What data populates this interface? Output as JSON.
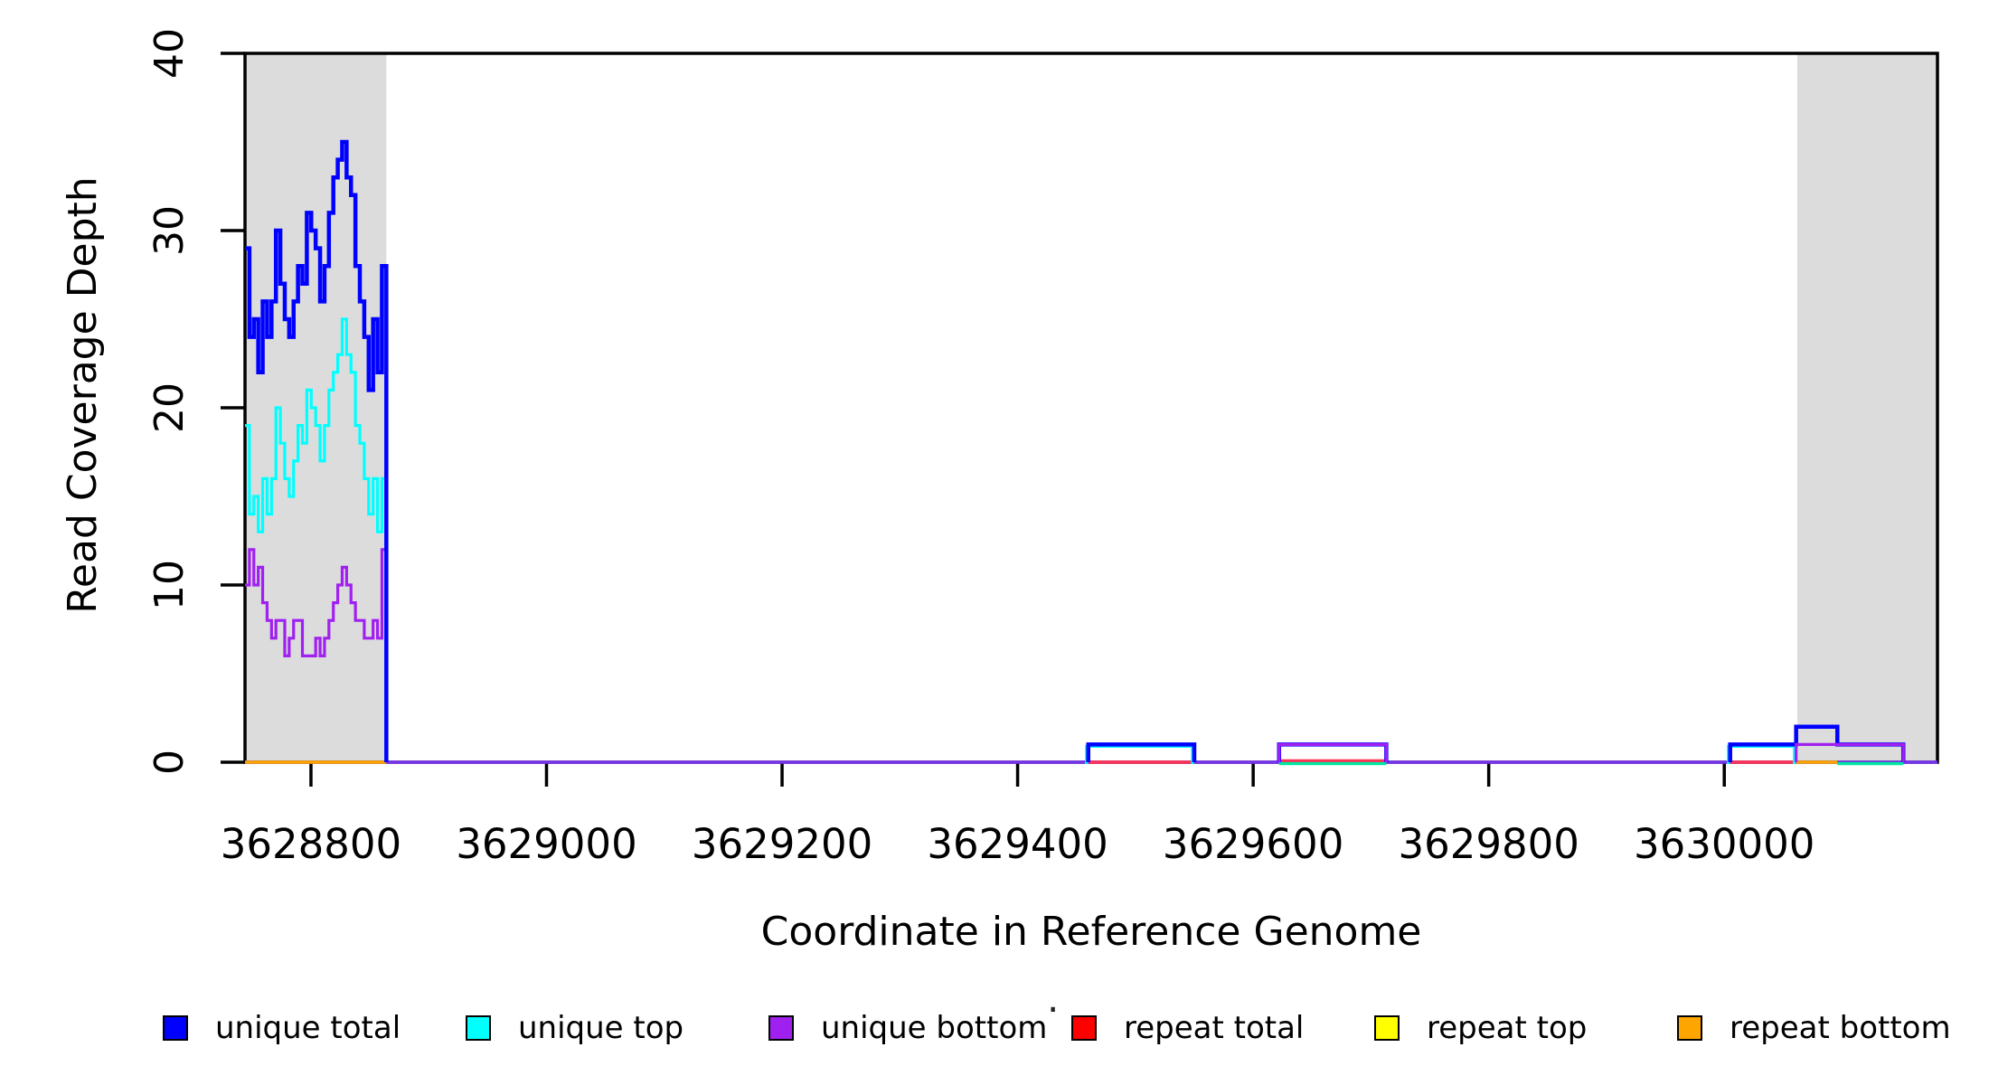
{
  "figure_title": "",
  "x_axis": {
    "title": "Coordinate in Reference Genome",
    "tick_values": [
      3628800,
      3629000,
      3629200,
      3629400,
      3629600,
      3629800,
      3630000
    ]
  },
  "y_axis": {
    "title": "Read Coverage Depth",
    "tick_values": [
      0,
      10,
      20,
      30,
      40
    ]
  },
  "legend": {
    "items": [
      {
        "label": "unique total",
        "color": "#0000FF"
      },
      {
        "label": "unique top",
        "color": "#00FFFF"
      },
      {
        "label": "unique bottom",
        "color": "#A020F0"
      },
      {
        "label": "repeat total",
        "color": "#FF0000"
      },
      {
        "label": "repeat top",
        "color": "#FFFF00"
      },
      {
        "label": "repeat bottom",
        "color": "#FFA500"
      }
    ],
    "artifact_dot": "·"
  },
  "chart_data": {
    "type": "line",
    "subtype": "step-coverage",
    "title": "",
    "xlabel": "Coordinate in Reference Genome",
    "ylabel": "Read Coverage Depth",
    "xlim": [
      3628744,
      3630181
    ],
    "ylim": [
      0,
      40
    ],
    "x_ticks": [
      3628800,
      3629000,
      3629200,
      3629400,
      3629600,
      3629800,
      3630000
    ],
    "y_ticks": [
      0,
      10,
      20,
      30,
      40
    ],
    "grid": false,
    "legend_position": "bottom",
    "shaded_regions": [
      {
        "from": 3628744,
        "to": 3628864,
        "color": "#DCDCDC"
      },
      {
        "from": 3630062,
        "to": 3630181,
        "color": "#DCDCDC"
      }
    ],
    "left_block": {
      "start": 3628744,
      "end": 3628864,
      "series": [
        {
          "name": "unique bottom",
          "color": "#A020F0",
          "line_width": 3.2,
          "values": [
            10,
            12,
            10,
            11,
            9,
            8,
            7,
            8,
            8,
            6,
            7,
            8,
            8,
            6,
            6,
            6,
            7,
            6,
            7,
            8,
            9,
            10,
            11,
            10,
            9,
            8,
            8,
            7,
            7,
            8,
            7,
            12
          ]
        },
        {
          "name": "unique top",
          "color": "#00FFFF",
          "line_width": 3.2,
          "values": [
            19,
            14,
            15,
            13,
            16,
            14,
            16,
            20,
            18,
            16,
            15,
            17,
            19,
            18,
            21,
            20,
            19,
            17,
            19,
            21,
            22,
            23,
            25,
            23,
            22,
            19,
            18,
            16,
            14,
            16,
            13,
            16
          ]
        },
        {
          "name": "unique total",
          "color": "#0000FF",
          "line_width": 4.5,
          "values": [
            29,
            24,
            25,
            22,
            26,
            24,
            26,
            30,
            27,
            25,
            24,
            26,
            28,
            27,
            31,
            30,
            29,
            26,
            28,
            31,
            33,
            34,
            35,
            33,
            32,
            28,
            26,
            24,
            21,
            25,
            22,
            28
          ]
        }
      ]
    },
    "features": [
      {
        "series": "unique top",
        "color": "#00FFFF",
        "line_width": 3.2,
        "shift": true,
        "segments": [
          {
            "from": 3629460,
            "to": 3629550,
            "depth": 1
          },
          {
            "from": 3630005,
            "to": 3630061,
            "depth": 1
          }
        ]
      },
      {
        "series": "unique total",
        "color": "#0000FF",
        "line_width": 4.5,
        "shift": false,
        "segments": [
          {
            "from": 3629460,
            "to": 3629550,
            "depth": 1
          },
          {
            "from": 3629622,
            "to": 3629713,
            "depth": 1
          },
          {
            "from": 3630005,
            "to": 3630061,
            "depth": 1
          },
          {
            "from": 3630061,
            "to": 3630096,
            "depth": 2
          },
          {
            "from": 3630096,
            "to": 3630152,
            "depth": 1
          }
        ]
      },
      {
        "series": "unique bottom",
        "color": "#A020F0",
        "line_width": 3.2,
        "shift": false,
        "segments": [
          {
            "from": 3629622,
            "to": 3629713,
            "depth": 1
          },
          {
            "from": 3630061,
            "to": 3630152,
            "depth": 1
          }
        ]
      }
    ],
    "zero_line_segments": [
      {
        "from": 3628744,
        "to": 3630181,
        "color": "#7733EE",
        "offset": 0,
        "note": "unique-bottom/total overlap baseline"
      },
      {
        "from": 3628744,
        "to": 3628864,
        "color": "#FFA500",
        "offset": 0,
        "note": "repeat bottom visible in left shaded region"
      },
      {
        "from": 3629460,
        "to": 3629550,
        "color": "#FF3355",
        "offset": 0,
        "note": "repeat total under feature 1"
      },
      {
        "from": 3629622,
        "to": 3629713,
        "color": "#FF3355",
        "offset": -1.6,
        "note": "repeat total sliver under feature 2"
      },
      {
        "from": 3630005,
        "to": 3630061,
        "color": "#FF3355",
        "offset": 0,
        "note": "repeat total near right region"
      },
      {
        "from": 3630061,
        "to": 3630096,
        "color": "#FFA500",
        "offset": 0,
        "note": "repeat bottom in right shaded region"
      },
      {
        "from": 3629622,
        "to": 3629713,
        "color": "#00E8A0",
        "offset": 1.6,
        "note": "unique top at zero under feature 2"
      },
      {
        "from": 3630096,
        "to": 3630152,
        "color": "#00E8A0",
        "offset": 1.6,
        "note": "unique top at zero in right shaded region"
      }
    ]
  }
}
